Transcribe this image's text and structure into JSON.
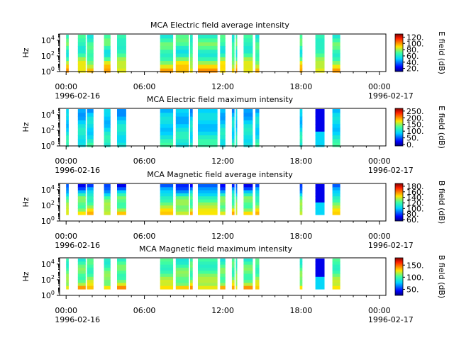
{
  "chart_data": [
    {
      "type": "heatmap",
      "title": "MCA  Electric field average intensity",
      "ylabel": "Hz",
      "colorbar_label": "E field (dB)",
      "colorbar_ticks": [
        "120.",
        "100.",
        "80.",
        "60.",
        "40.",
        "20."
      ],
      "colorbar_range": [
        10,
        130
      ],
      "profile": "avg",
      "yticks": [
        "10^0",
        "10^2",
        "10^4"
      ],
      "ylim_log10": [
        0,
        4.8
      ]
    },
    {
      "type": "heatmap",
      "title": "MCA  Electric field maximum intensity",
      "ylabel": "Hz",
      "colorbar_label": "E field (dB)",
      "colorbar_ticks": [
        "250.",
        "200.",
        "150.",
        "100.",
        "50.",
        "0."
      ],
      "colorbar_range": [
        -10,
        270
      ],
      "profile": "max",
      "yticks": [
        "10^0",
        "10^2",
        "10^4"
      ],
      "ylim_log10": [
        0,
        4.8
      ]
    },
    {
      "type": "heatmap",
      "title": "MCA  Magnetic field average intensity",
      "ylabel": "Hz",
      "colorbar_label": "B field (dB)",
      "colorbar_ticks": [
        "180.",
        "160.",
        "140.",
        "120.",
        "100.",
        "80.",
        "60."
      ],
      "colorbar_range": [
        55,
        190
      ],
      "profile": "bavg",
      "yticks": [
        "10^0",
        "10^2",
        "10^4"
      ],
      "ylim_log10": [
        0,
        4.8
      ]
    },
    {
      "type": "heatmap",
      "title": "MCA  Magnetic field maximum intensity",
      "ylabel": "Hz",
      "colorbar_label": "B field (dB)",
      "colorbar_ticks": [
        "150.",
        "100.",
        "50."
      ],
      "colorbar_range": [
        25,
        180
      ],
      "profile": "bmax",
      "yticks": [
        "10^0",
        "10^2",
        "10^4"
      ],
      "ylim_log10": [
        0,
        4.8
      ]
    }
  ],
  "x_axis": {
    "range_hours": [
      -0.5,
      24.5
    ],
    "ticks": [
      {
        "hour": 0,
        "label": "00:00",
        "date": "1996-02-16"
      },
      {
        "hour": 6,
        "label": "06:00",
        "date": ""
      },
      {
        "hour": 12,
        "label": "12:00",
        "date": ""
      },
      {
        "hour": 18,
        "label": "18:00",
        "date": ""
      },
      {
        "hour": 24,
        "label": "00:00",
        "date": "1996-02-17"
      }
    ],
    "minor_tick_hours": [
      1,
      2,
      3,
      4,
      5,
      7,
      8,
      9,
      10,
      11,
      13,
      14,
      15,
      16,
      17,
      19,
      20,
      21,
      22,
      23
    ]
  },
  "data_intervals_hours": [
    [
      0.0,
      0.2
    ],
    [
      0.9,
      1.5
    ],
    [
      1.6,
      2.1
    ],
    [
      2.9,
      3.4
    ],
    [
      3.9,
      4.6
    ],
    [
      7.2,
      8.2
    ],
    [
      8.4,
      9.4
    ],
    [
      9.5,
      9.7
    ],
    [
      10.1,
      11.6
    ],
    [
      11.8,
      12.2
    ],
    [
      12.7,
      12.9
    ],
    [
      13.0,
      13.1
    ],
    [
      13.6,
      14.3
    ],
    [
      14.5,
      14.8
    ],
    [
      17.9,
      18.1
    ],
    [
      19.1,
      19.8
    ],
    [
      20.4,
      21.0
    ]
  ]
}
